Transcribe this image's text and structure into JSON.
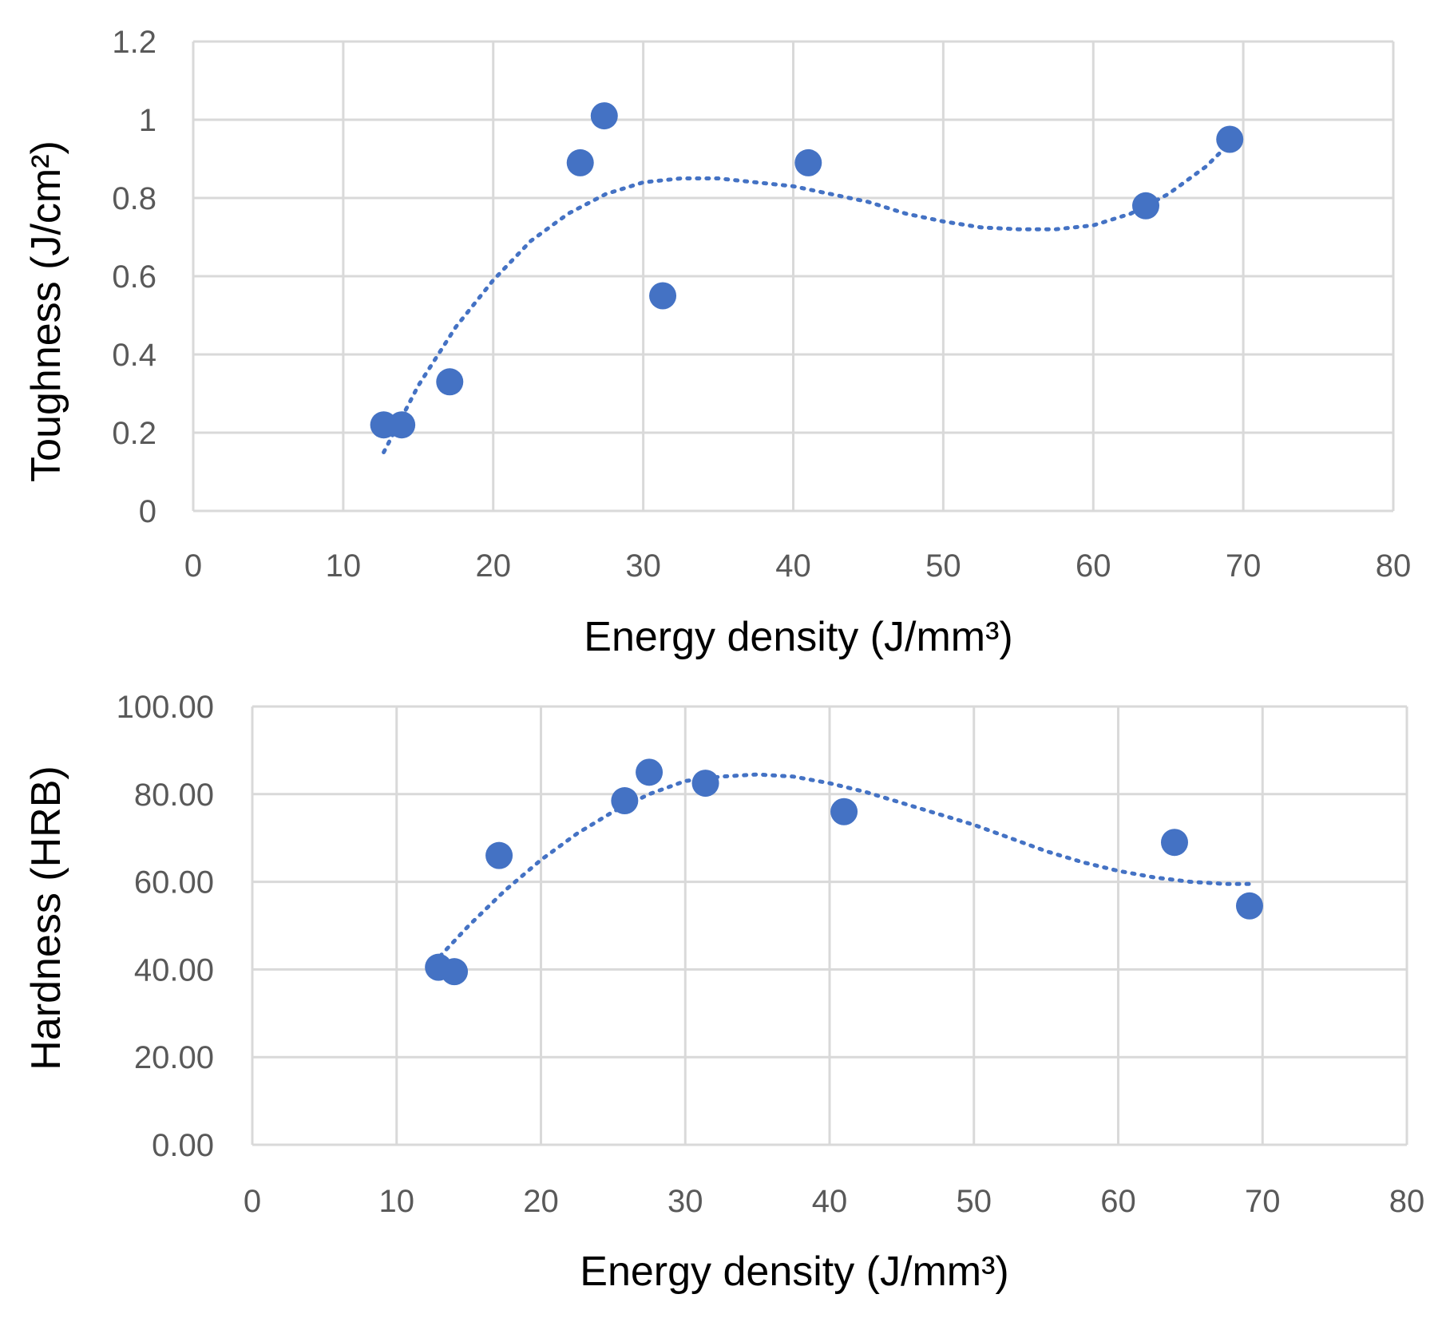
{
  "colors": {
    "point": "#4472c4",
    "trend": "#4472c4"
  },
  "chart_data": [
    {
      "type": "scatter",
      "title": "",
      "xlabel": "Energy density (J/mm³)",
      "ylabel": "Toughness (J/cm²)",
      "xlim": [
        0,
        80
      ],
      "ylim": [
        0,
        1.2
      ],
      "x_ticks": [
        "0",
        "10",
        "20",
        "30",
        "40",
        "50",
        "60",
        "70",
        "80"
      ],
      "y_ticks": [
        "0",
        "0.2",
        "0.4",
        "0.6",
        "0.8",
        "1",
        "1.2"
      ],
      "grid": true,
      "series": [
        {
          "name": "Toughness",
          "x": [
            12.7,
            13.9,
            17.1,
            25.8,
            27.4,
            31.3,
            41.0,
            63.5,
            69.1
          ],
          "y": [
            0.22,
            0.22,
            0.33,
            0.89,
            1.01,
            0.55,
            0.89,
            0.78,
            0.95
          ]
        }
      ],
      "trendline": {
        "type": "polynomial",
        "x": [
          12.7,
          15,
          17.5,
          20,
          22.5,
          25,
          27.5,
          30,
          32.5,
          35,
          37.5,
          40,
          42.5,
          45,
          47.5,
          50,
          52.5,
          55,
          57.5,
          60,
          62.5,
          65,
          67.5,
          69.1
        ],
        "y": [
          0.15,
          0.32,
          0.47,
          0.59,
          0.69,
          0.76,
          0.81,
          0.84,
          0.85,
          0.85,
          0.84,
          0.83,
          0.81,
          0.79,
          0.76,
          0.74,
          0.725,
          0.72,
          0.72,
          0.73,
          0.76,
          0.81,
          0.88,
          0.94
        ]
      }
    },
    {
      "type": "scatter",
      "title": "",
      "xlabel": "Energy density (J/mm³)",
      "ylabel": "Hardness (HRB)",
      "xlim": [
        0,
        80
      ],
      "ylim": [
        0,
        100
      ],
      "x_ticks": [
        "0",
        "10",
        "20",
        "30",
        "40",
        "50",
        "60",
        "70",
        "80"
      ],
      "y_ticks": [
        "0.00",
        "20.00",
        "40.00",
        "60.00",
        "80.00",
        "100.00"
      ],
      "grid": true,
      "series": [
        {
          "name": "Hardness",
          "x": [
            12.9,
            14.0,
            17.1,
            25.8,
            27.5,
            31.4,
            41.0,
            63.9,
            69.1
          ],
          "y": [
            40.5,
            39.5,
            66.0,
            78.5,
            85.0,
            82.5,
            76.0,
            69.0,
            54.5
          ]
        }
      ],
      "trendline": {
        "type": "polynomial",
        "x": [
          13,
          15,
          17.5,
          20,
          22.5,
          25,
          27.5,
          30,
          32.5,
          35,
          37.5,
          40,
          42.5,
          45,
          47.5,
          50,
          52.5,
          55,
          57.5,
          60,
          62.5,
          65,
          67.5,
          69.1
        ],
        "y": [
          43,
          50,
          58,
          65,
          71,
          76,
          80,
          83,
          84,
          84.5,
          84,
          82.5,
          80.5,
          78,
          75.5,
          73,
          70,
          67,
          64.5,
          62.5,
          61,
          60,
          59.5,
          59.5
        ]
      }
    }
  ]
}
